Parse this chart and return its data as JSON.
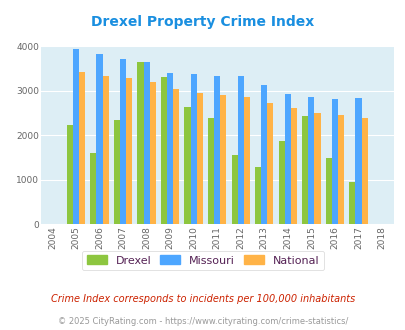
{
  "title": "Drexel Property Crime Index",
  "years": [
    2004,
    2005,
    2006,
    2007,
    2008,
    2009,
    2010,
    2011,
    2012,
    2013,
    2014,
    2015,
    2016,
    2017,
    2018
  ],
  "drexel": [
    0,
    2230,
    1600,
    2340,
    3650,
    3300,
    2640,
    2380,
    1560,
    1280,
    1880,
    2440,
    1490,
    950,
    0
  ],
  "missouri": [
    0,
    3930,
    3830,
    3720,
    3650,
    3400,
    3370,
    3340,
    3340,
    3140,
    2930,
    2870,
    2820,
    2830,
    0
  ],
  "national": [
    0,
    3430,
    3340,
    3280,
    3200,
    3030,
    2960,
    2910,
    2870,
    2730,
    2610,
    2500,
    2450,
    2390,
    0
  ],
  "drexel_color": "#8dc63f",
  "missouri_color": "#4da6ff",
  "national_color": "#ffb347",
  "bg_color": "#ddeef5",
  "ylim": [
    0,
    4000
  ],
  "yticks": [
    0,
    1000,
    2000,
    3000,
    4000
  ],
  "footnote1": "Crime Index corresponds to incidents per 100,000 inhabitants",
  "footnote2": "© 2025 CityRating.com - https://www.cityrating.com/crime-statistics/",
  "title_color": "#1a8fe0",
  "footnote1_color": "#cc2200",
  "footnote2_color": "#999999",
  "legend_text_color": "#552255"
}
